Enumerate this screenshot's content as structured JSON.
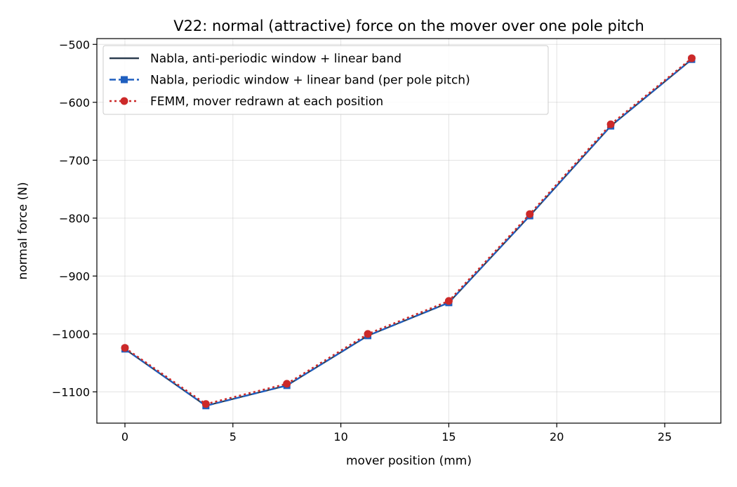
{
  "chart_data": {
    "type": "line",
    "title": "V22: normal (attractive) force on the mover over one pole pitch",
    "xlabel": "mover position (mm)",
    "ylabel": "normal force (N)",
    "xlim": [
      -1.3,
      27.6
    ],
    "ylim": [
      -1154,
      -490
    ],
    "xticks": [
      0,
      5,
      10,
      15,
      20,
      25
    ],
    "yticks": [
      -1100,
      -1000,
      -900,
      -800,
      -700,
      -600,
      -500
    ],
    "xtick_labels": [
      "0",
      "5",
      "10",
      "15",
      "20",
      "25"
    ],
    "ytick_labels": [
      "−1100",
      "−1000",
      "−900",
      "−800",
      "−700",
      "−600",
      "−500"
    ],
    "grid": true,
    "legend_position": "upper-left",
    "x": [
      0,
      3.75,
      7.5,
      11.25,
      15,
      18.75,
      22.5,
      26.25
    ],
    "series": [
      {
        "name": "Nabla, anti-periodic window + linear band",
        "values": [
          -1026,
          -1124,
          -1089,
          -1003,
          -946,
          -796,
          -641,
          -526
        ],
        "color": "#2c3e50",
        "style": "solid",
        "marker": "none"
      },
      {
        "name": "Nabla, periodic window + linear band (per pole pitch)",
        "values": [
          -1026,
          -1124,
          -1089,
          -1003,
          -946,
          -796,
          -641,
          -526
        ],
        "color": "#1f5fbf",
        "style": "dashed",
        "marker": "square"
      },
      {
        "name": "FEMM, mover redrawn at each position",
        "values": [
          -1024,
          -1121,
          -1086,
          -1000,
          -943,
          -793,
          -638,
          -524
        ],
        "color": "#cc2929",
        "style": "dotted",
        "marker": "circle"
      }
    ]
  }
}
